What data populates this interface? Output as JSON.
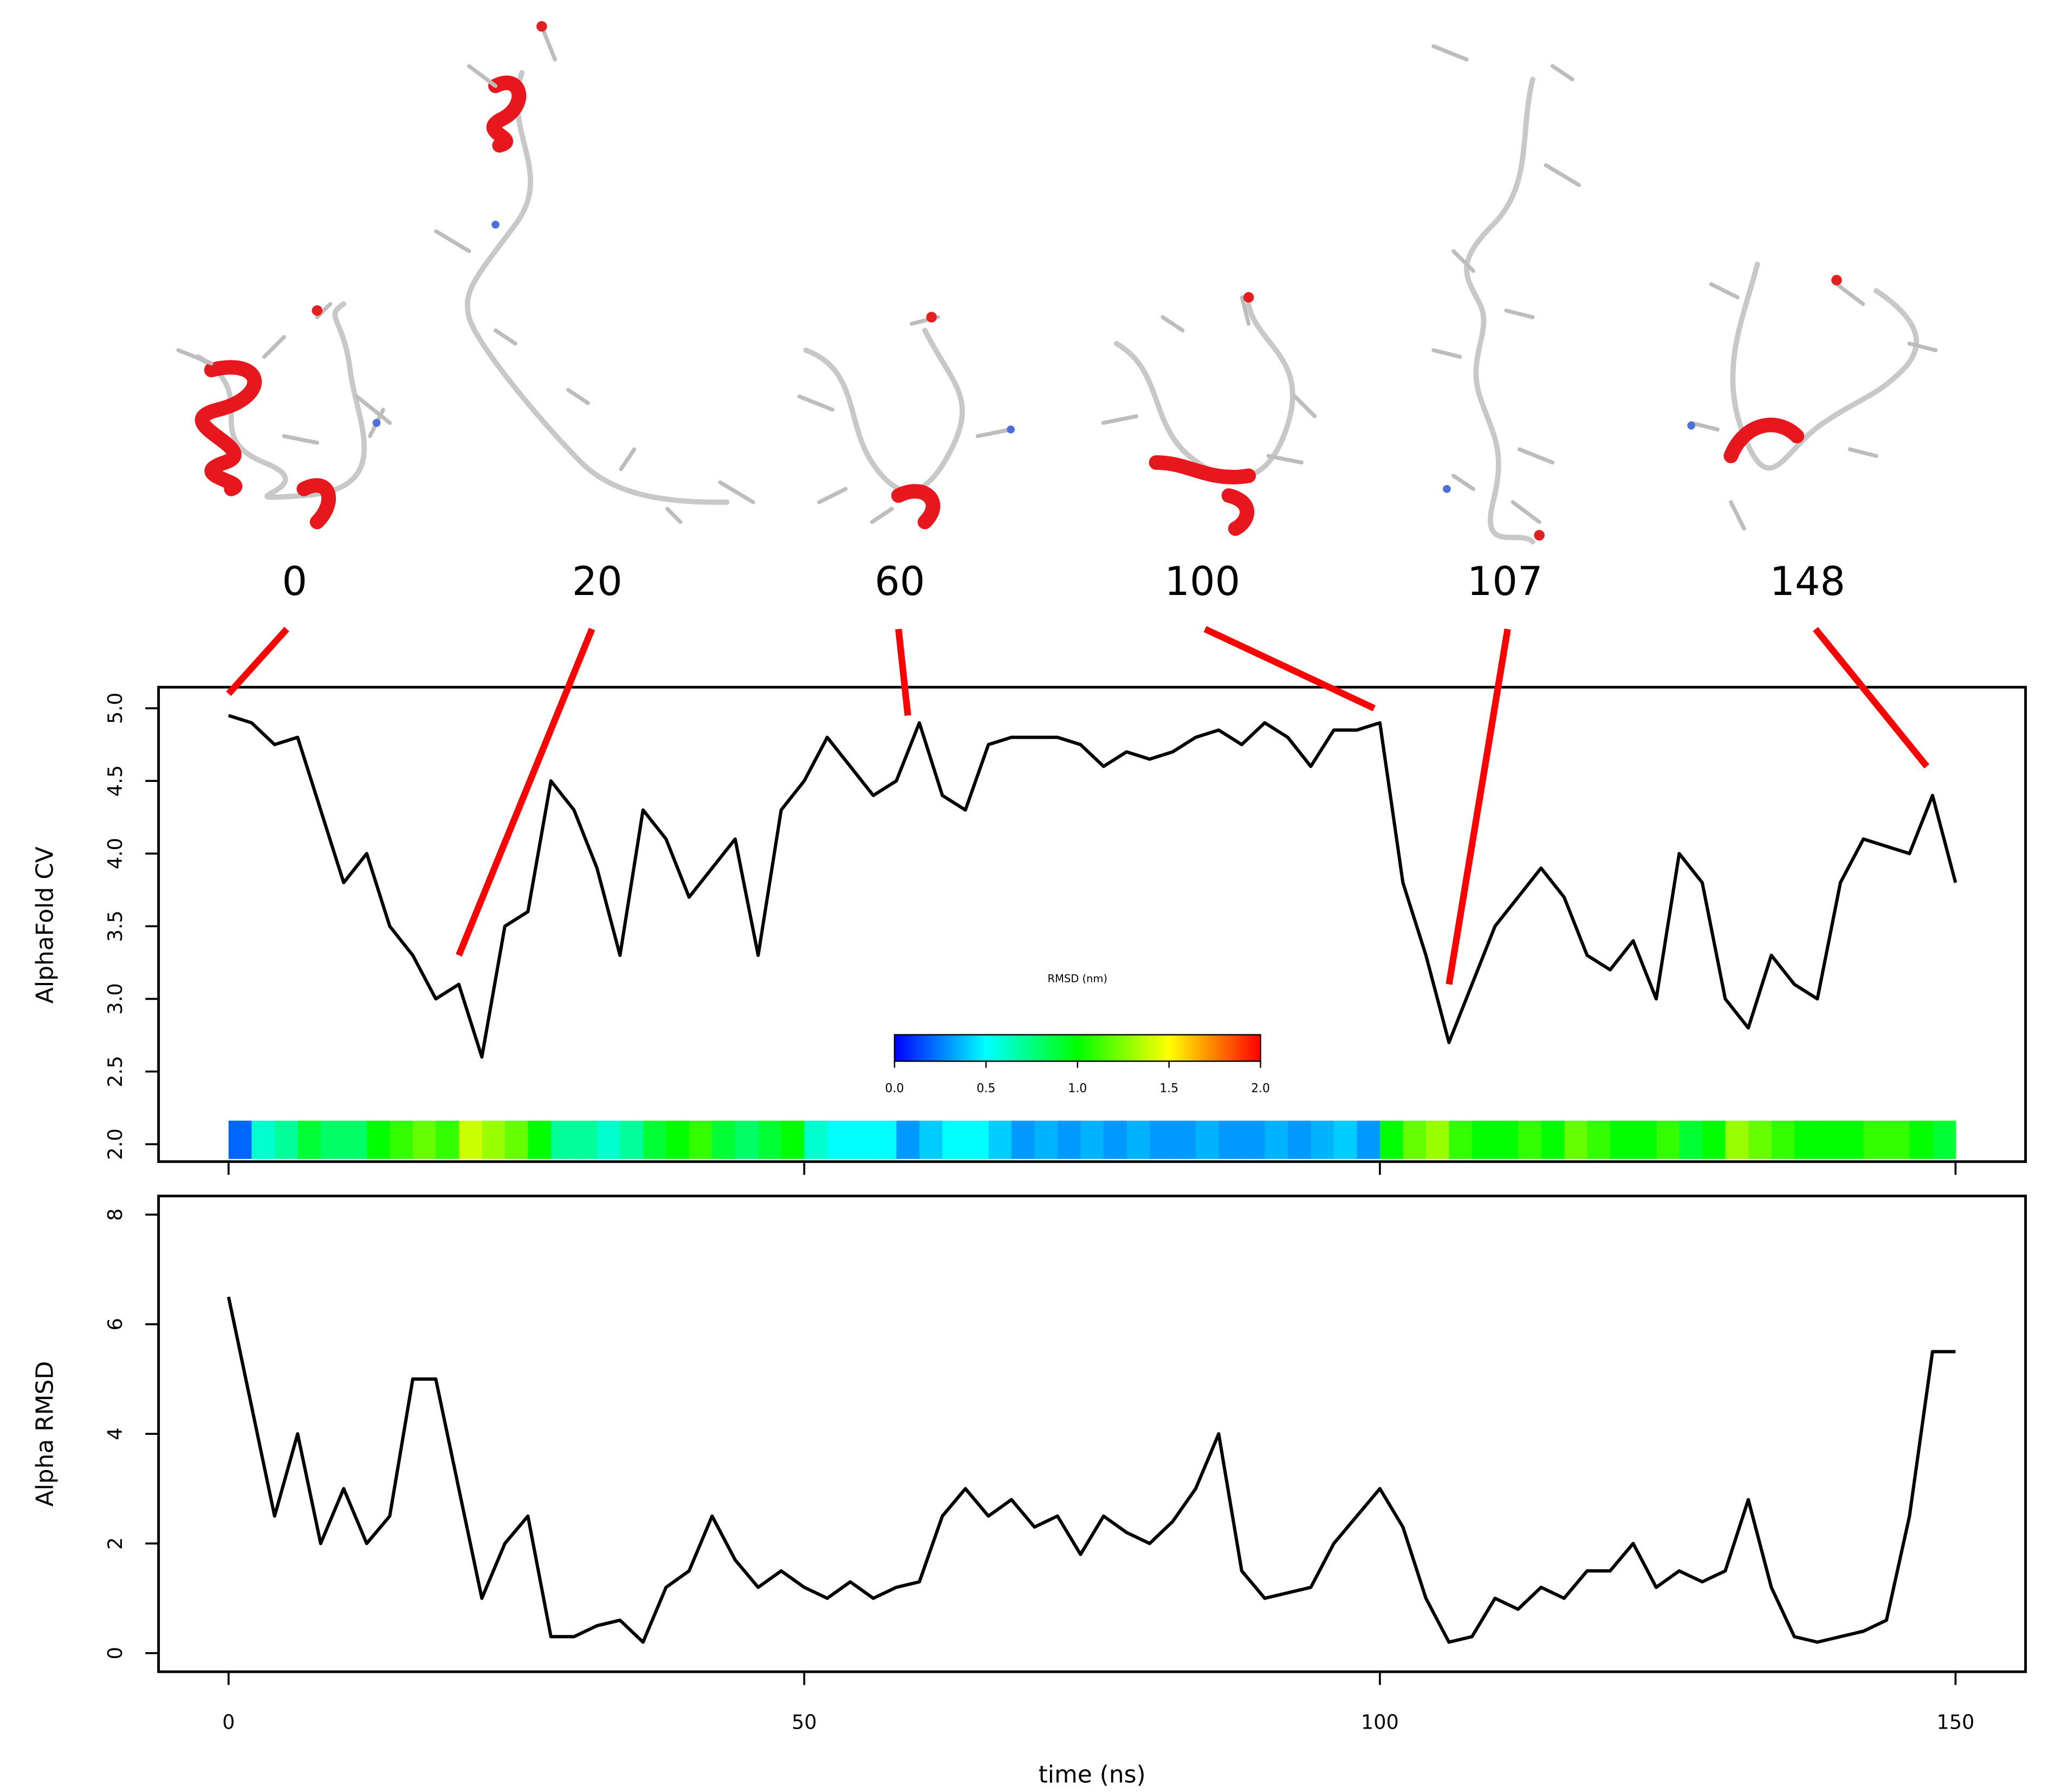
{
  "chart_data": [
    {
      "type": "line",
      "y_label": "AlphaFold CV",
      "x": [
        0,
        2,
        4,
        6,
        8,
        10,
        12,
        14,
        16,
        18,
        20,
        22,
        24,
        26,
        28,
        30,
        32,
        34,
        36,
        38,
        40,
        42,
        44,
        46,
        48,
        50,
        52,
        54,
        56,
        58,
        60,
        62,
        64,
        66,
        68,
        70,
        72,
        74,
        76,
        78,
        80,
        82,
        84,
        86,
        88,
        90,
        92,
        94,
        96,
        98,
        100,
        102,
        104,
        106,
        108,
        110,
        112,
        114,
        116,
        118,
        120,
        122,
        124,
        126,
        128,
        130,
        132,
        134,
        136,
        138,
        140,
        142,
        144,
        146,
        148,
        150
      ],
      "series": [
        {
          "color": "#000000",
          "values": [
            4.95,
            4.9,
            4.75,
            4.8,
            4.3,
            3.8,
            4.0,
            3.5,
            3.3,
            3.0,
            3.1,
            2.6,
            3.5,
            3.6,
            4.5,
            4.3,
            3.9,
            3.3,
            4.3,
            4.1,
            3.7,
            3.9,
            4.1,
            3.3,
            4.3,
            4.5,
            4.8,
            4.6,
            4.4,
            4.5,
            4.9,
            4.4,
            4.3,
            4.75,
            4.8,
            4.8,
            4.8,
            4.75,
            4.6,
            4.7,
            4.65,
            4.7,
            4.8,
            4.85,
            4.75,
            4.9,
            4.8,
            4.6,
            4.85,
            4.85,
            4.9,
            3.8,
            3.3,
            2.7,
            3.1,
            3.5,
            3.7,
            3.9,
            3.7,
            3.3,
            3.2,
            3.4,
            3.0,
            4.0,
            3.8,
            3.0,
            2.8,
            3.3,
            3.1,
            3.0,
            3.8,
            4.1,
            4.05,
            4.0,
            4.4,
            3.8
          ]
        }
      ],
      "xlim": [
        -6.08,
        156.08
      ],
      "ylim": [
        1.88,
        5.145
      ],
      "yticks": [
        {
          "value": 2,
          "label": "2.0"
        },
        2.5,
        {
          "value": 3,
          "label": "3.0"
        },
        3.5,
        {
          "value": 4,
          "label": "4.0"
        },
        4.5,
        {
          "value": 5,
          "label": "5.0"
        }
      ],
      "strip_values": [
        0.2,
        0.6,
        0.7,
        0.9,
        0.8,
        0.8,
        1.0,
        1.1,
        1.2,
        1.1,
        1.4,
        1.3,
        1.2,
        1.0,
        0.7,
        0.7,
        0.6,
        0.7,
        0.9,
        1.0,
        1.1,
        0.9,
        0.8,
        0.9,
        1.0,
        0.6,
        0.5,
        0.5,
        0.5,
        0.3,
        0.4,
        0.5,
        0.5,
        0.4,
        0.3,
        0.35,
        0.3,
        0.35,
        0.3,
        0.35,
        0.3,
        0.3,
        0.35,
        0.3,
        0.3,
        0.35,
        0.3,
        0.35,
        0.4,
        0.3,
        1.0,
        1.2,
        1.3,
        1.1,
        1.0,
        1.0,
        1.1,
        1.0,
        1.2,
        1.1,
        1.0,
        1.0,
        1.1,
        0.9,
        1.0,
        1.3,
        1.2,
        1.1,
        1.0,
        1.0,
        1.0,
        1.1,
        1.1,
        1.0,
        0.9
      ],
      "colorbar": {
        "title": "RMSD (nm)",
        "lim": [
          0,
          2
        ],
        "colors": [
          "#0000ff",
          "#00ffff",
          "#00ff00",
          "#ffff00",
          "#ff0000"
        ],
        "ticks": [
          {
            "value": 0,
            "label": "0.0"
          },
          0.5,
          {
            "value": 1,
            "label": "1.0"
          },
          1.5,
          {
            "value": 2,
            "label": "2.0"
          }
        ]
      },
      "annotations": [
        {
          "label": "0",
          "x": 0,
          "y": 5.1
        },
        {
          "label": "20",
          "x": 20,
          "y": 3.3
        },
        {
          "label": "60",
          "x": 59,
          "y": 4.95
        },
        {
          "label": "100",
          "x": 99.5,
          "y": 5.0
        },
        {
          "label": "107",
          "x": 106,
          "y": 3.1
        },
        {
          "label": "148",
          "x": 147.5,
          "y": 4.6
        }
      ],
      "annotation_color": "#ff0000"
    },
    {
      "type": "line",
      "y_label": "Alpha RMSD",
      "x_label": "time (ns)",
      "x": [
        0,
        2,
        4,
        6,
        8,
        10,
        12,
        14,
        16,
        18,
        20,
        22,
        24,
        26,
        28,
        30,
        32,
        34,
        36,
        38,
        40,
        42,
        44,
        46,
        48,
        50,
        52,
        54,
        56,
        58,
        60,
        62,
        64,
        66,
        68,
        70,
        72,
        74,
        76,
        78,
        80,
        82,
        84,
        86,
        88,
        90,
        92,
        94,
        96,
        98,
        100,
        102,
        104,
        106,
        108,
        110,
        112,
        114,
        116,
        118,
        120,
        122,
        124,
        126,
        128,
        130,
        132,
        134,
        136,
        138,
        140,
        142,
        144,
        146,
        148,
        150
      ],
      "series": [
        {
          "color": "#000000",
          "values": [
            6.5,
            4.5,
            2.5,
            4.0,
            2.0,
            3.0,
            2.0,
            2.5,
            5.0,
            5.0,
            3.0,
            1.0,
            2.0,
            2.5,
            0.3,
            0.3,
            0.5,
            0.6,
            0.2,
            1.2,
            1.5,
            2.5,
            1.7,
            1.2,
            1.5,
            1.2,
            1.0,
            1.3,
            1.0,
            1.2,
            1.3,
            2.5,
            3.0,
            2.5,
            2.8,
            2.3,
            2.5,
            1.8,
            2.5,
            2.2,
            2.0,
            2.4,
            3.0,
            4.0,
            1.5,
            1.0,
            1.1,
            1.2,
            2.0,
            2.5,
            3.0,
            2.3,
            1.0,
            0.2,
            0.3,
            1.0,
            0.8,
            1.2,
            1.0,
            1.5,
            1.5,
            2.0,
            1.2,
            1.5,
            1.3,
            1.5,
            2.8,
            1.2,
            0.3,
            0.2,
            0.3,
            0.4,
            0.6,
            2.5,
            5.5,
            5.5
          ]
        }
      ],
      "xlim": [
        -6.08,
        156.08
      ],
      "ylim": [
        -0.34,
        8.34
      ],
      "xticks": [
        0,
        50,
        100,
        150
      ],
      "yticks": [
        0,
        2,
        4,
        6,
        8
      ]
    }
  ]
}
